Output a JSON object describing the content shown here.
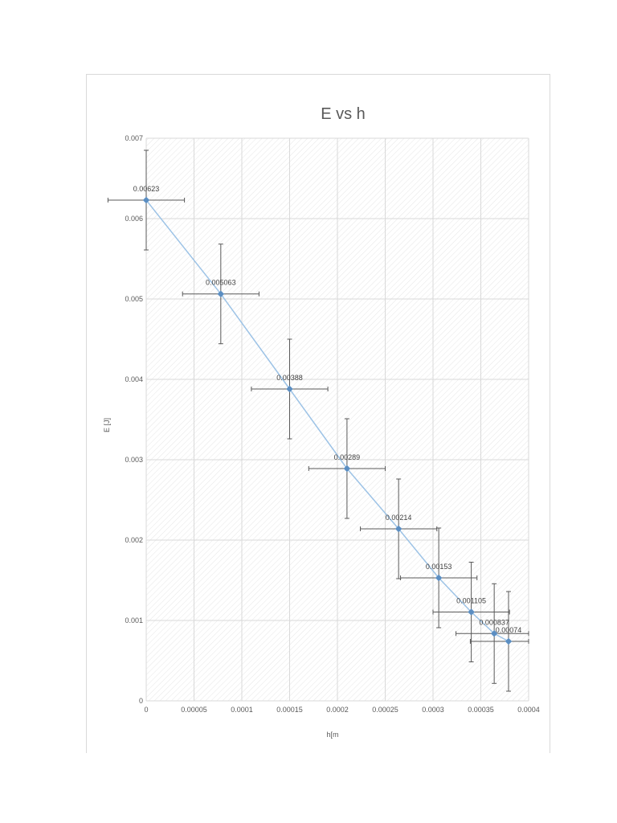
{
  "chart_data": {
    "type": "scatter",
    "title": "E vs h",
    "xlabel": "h[m",
    "ylabel": "E [J]",
    "xlim": [
      0,
      0.0004
    ],
    "ylim": [
      0,
      0.007
    ],
    "x_ticks": [
      "0",
      "0.00005",
      "0.0001",
      "0.00015",
      "0.0002",
      "0.00025",
      "0.0003",
      "0.00035",
      "0.0004"
    ],
    "x_tick_values": [
      0,
      5e-05,
      0.0001,
      0.00015,
      0.0002,
      0.00025,
      0.0003,
      0.00035,
      0.0004
    ],
    "y_ticks": [
      "0",
      "0.001",
      "0.002",
      "0.003",
      "0.004",
      "0.005",
      "0.006",
      "0.007"
    ],
    "y_tick_values": [
      0,
      0.001,
      0.002,
      0.003,
      0.004,
      0.005,
      0.006,
      0.007
    ],
    "grid": true,
    "line_through_points": true,
    "series": [
      {
        "points": [
          {
            "x": 0.0,
            "y": 0.00623,
            "label": "0.00623",
            "xerr": 4e-05,
            "yerr": 0.00062
          },
          {
            "x": 7.8e-05,
            "y": 0.005063,
            "label": "0.005063",
            "xerr": 4e-05,
            "yerr": 0.00062
          },
          {
            "x": 0.00015,
            "y": 0.00388,
            "label": "0.00388",
            "xerr": 4e-05,
            "yerr": 0.00062
          },
          {
            "x": 0.00021,
            "y": 0.00289,
            "label": "0.00289",
            "xerr": 4e-05,
            "yerr": 0.00062
          },
          {
            "x": 0.000264,
            "y": 0.00214,
            "label": "0.00214",
            "xerr": 4e-05,
            "yerr": 0.00062
          },
          {
            "x": 0.000306,
            "y": 0.00153,
            "label": "0.00153",
            "xerr": 4e-05,
            "yerr": 0.00062
          },
          {
            "x": 0.00034,
            "y": 0.001105,
            "label": "0.001105",
            "xerr": 4e-05,
            "yerr": 0.00062
          },
          {
            "x": 0.000364,
            "y": 0.000837,
            "label": "0.000837",
            "xerr": 4e-05,
            "yerr": 0.00062
          },
          {
            "x": 0.000379,
            "y": 0.00074,
            "label": "0.00074",
            "xerr": 4e-05,
            "yerr": 0.00062
          }
        ]
      }
    ]
  },
  "colors": {
    "line": "#9dc3e6",
    "marker": "#5b8ec2",
    "errorbar": "#595959",
    "grid": "#d9d9d9",
    "hatch": "#e4e4e4"
  }
}
